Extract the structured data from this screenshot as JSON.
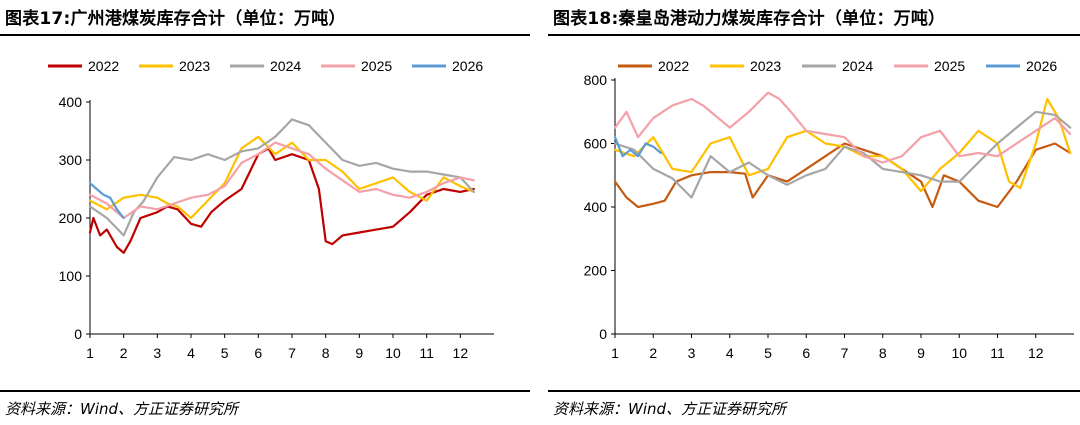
{
  "charts": [
    {
      "title": "图表17:广州港煤炭库存合计（单位：万吨）",
      "source": "资料来源：Wind、方正证券研究所"
    },
    {
      "title": "图表18:秦皇岛港动力煤炭库存合计（单位：万吨）",
      "source": "资料来源：Wind、方正证券研究所"
    }
  ],
  "chart_data": [
    {
      "type": "line",
      "title": "图表17:广州港煤炭库存合计（单位：万吨）",
      "xlabel": "",
      "ylabel": "",
      "xlim": [
        1,
        13
      ],
      "ylim": [
        0,
        400
      ],
      "x_ticks": [
        1,
        2,
        3,
        4,
        5,
        6,
        7,
        8,
        9,
        10,
        11,
        12
      ],
      "y_ticks": [
        0,
        100,
        200,
        300,
        400
      ],
      "grid": false,
      "legend": "top",
      "series": [
        {
          "name": "2022",
          "color": "#c00000",
          "x": [
            1.0,
            1.1,
            1.3,
            1.5,
            1.8,
            2.0,
            2.2,
            2.5,
            3.0,
            3.3,
            3.6,
            4.0,
            4.3,
            4.6,
            5.0,
            5.5,
            6.0,
            6.3,
            6.5,
            7.0,
            7.5,
            7.8,
            8.0,
            8.2,
            8.5,
            9.0,
            9.5,
            10.0,
            10.5,
            11.0,
            11.5,
            12.0,
            12.4
          ],
          "y": [
            175,
            200,
            170,
            180,
            150,
            140,
            160,
            200,
            210,
            220,
            215,
            190,
            185,
            210,
            230,
            250,
            310,
            320,
            300,
            310,
            300,
            250,
            160,
            155,
            170,
            175,
            180,
            185,
            210,
            240,
            250,
            245,
            250
          ]
        },
        {
          "name": "2023",
          "color": "#ffc000",
          "x": [
            1.0,
            1.5,
            2.0,
            2.5,
            3.0,
            3.3,
            3.6,
            4.0,
            4.5,
            5.0,
            5.5,
            6.0,
            6.5,
            7.0,
            7.5,
            8.0,
            8.5,
            9.0,
            9.5,
            10.0,
            10.5,
            11.0,
            11.5,
            12.0,
            12.4
          ],
          "y": [
            230,
            215,
            235,
            240,
            235,
            225,
            220,
            200,
            230,
            260,
            320,
            340,
            310,
            330,
            300,
            300,
            280,
            250,
            260,
            270,
            245,
            230,
            270,
            255,
            245
          ]
        },
        {
          "name": "2024",
          "color": "#a6a6a6",
          "x": [
            1.0,
            1.5,
            2.0,
            2.3,
            2.6,
            3.0,
            3.5,
            4.0,
            4.5,
            5.0,
            5.5,
            6.0,
            6.5,
            7.0,
            7.5,
            8.0,
            8.5,
            9.0,
            9.5,
            10.0,
            10.5,
            11.0,
            11.5,
            12.0,
            12.4
          ],
          "y": [
            220,
            200,
            170,
            210,
            230,
            270,
            305,
            300,
            310,
            300,
            315,
            320,
            340,
            370,
            360,
            330,
            300,
            290,
            295,
            285,
            280,
            280,
            275,
            270,
            245
          ]
        },
        {
          "name": "2025",
          "color": "#f4a0a8",
          "x": [
            1.0,
            1.5,
            2.0,
            2.5,
            3.0,
            3.5,
            4.0,
            4.5,
            5.0,
            5.5,
            6.0,
            6.5,
            7.0,
            7.5,
            8.0,
            8.5,
            9.0,
            9.5,
            10.0,
            10.5,
            11.0,
            11.5,
            12.0,
            12.4
          ],
          "y": [
            240,
            225,
            200,
            220,
            215,
            225,
            235,
            240,
            255,
            295,
            310,
            330,
            320,
            310,
            285,
            265,
            245,
            250,
            240,
            235,
            245,
            260,
            270,
            265
          ]
        },
        {
          "name": "2026",
          "color": "#5b9bd5",
          "x": [
            1.0,
            1.2,
            1.4,
            1.6,
            1.8,
            2.0
          ],
          "y": [
            260,
            250,
            240,
            235,
            215,
            200
          ]
        }
      ]
    },
    {
      "type": "line",
      "title": "图表18:秦皇岛港动力煤炭库存合计（单位：万吨）",
      "xlabel": "",
      "ylabel": "",
      "xlim": [
        1,
        13
      ],
      "ylim": [
        0,
        800
      ],
      "x_ticks": [
        1,
        2,
        3,
        4,
        5,
        6,
        7,
        8,
        9,
        10,
        11,
        12
      ],
      "y_ticks": [
        0,
        200,
        400,
        600,
        800
      ],
      "grid": false,
      "legend": "top",
      "series": [
        {
          "name": "2022",
          "color": "#c55a11",
          "x": [
            1.0,
            1.3,
            1.6,
            2.0,
            2.3,
            2.6,
            3.0,
            3.5,
            4.0,
            4.4,
            4.6,
            5.0,
            5.5,
            6.0,
            6.5,
            7.0,
            7.5,
            8.0,
            8.5,
            9.0,
            9.3,
            9.6,
            10.0,
            10.5,
            11.0,
            11.5,
            12.0,
            12.5,
            12.9
          ],
          "y": [
            480,
            430,
            400,
            410,
            420,
            480,
            500,
            510,
            510,
            505,
            430,
            500,
            480,
            520,
            560,
            600,
            580,
            560,
            520,
            480,
            400,
            500,
            480,
            420,
            400,
            480,
            580,
            600,
            570
          ]
        },
        {
          "name": "2023",
          "color": "#ffc000",
          "x": [
            1.0,
            1.5,
            2.0,
            2.5,
            3.0,
            3.5,
            4.0,
            4.5,
            5.0,
            5.5,
            6.0,
            6.5,
            7.0,
            7.5,
            8.0,
            8.5,
            9.0,
            9.5,
            10.0,
            10.5,
            11.0,
            11.3,
            11.6,
            12.0,
            12.3,
            12.6,
            12.9
          ],
          "y": [
            580,
            560,
            620,
            520,
            510,
            600,
            620,
            500,
            520,
            620,
            640,
            600,
            590,
            560,
            560,
            520,
            450,
            520,
            570,
            640,
            600,
            480,
            460,
            600,
            740,
            680,
            570
          ]
        },
        {
          "name": "2024",
          "color": "#a6a6a6",
          "x": [
            1.0,
            1.5,
            2.0,
            2.5,
            3.0,
            3.5,
            4.0,
            4.5,
            5.0,
            5.5,
            6.0,
            6.5,
            7.0,
            7.5,
            8.0,
            8.5,
            9.0,
            9.5,
            10.0,
            10.5,
            11.0,
            11.5,
            12.0,
            12.5,
            12.9
          ],
          "y": [
            600,
            580,
            520,
            490,
            430,
            560,
            510,
            540,
            500,
            470,
            500,
            520,
            590,
            570,
            520,
            510,
            500,
            480,
            480,
            540,
            600,
            650,
            700,
            690,
            650
          ]
        },
        {
          "name": "2025",
          "color": "#f4a0a8",
          "x": [
            1.0,
            1.3,
            1.6,
            2.0,
            2.5,
            3.0,
            3.3,
            3.6,
            4.0,
            4.5,
            5.0,
            5.3,
            5.6,
            6.0,
            6.5,
            7.0,
            7.5,
            8.0,
            8.5,
            9.0,
            9.5,
            10.0,
            10.5,
            11.0,
            11.5,
            12.0,
            12.5,
            12.9
          ],
          "y": [
            650,
            700,
            620,
            680,
            720,
            740,
            720,
            690,
            650,
            700,
            760,
            740,
            700,
            640,
            630,
            620,
            560,
            540,
            560,
            620,
            640,
            560,
            570,
            560,
            600,
            640,
            680,
            630
          ]
        },
        {
          "name": "2026",
          "color": "#5b9bd5",
          "x": [
            1.0,
            1.2,
            1.4,
            1.6,
            1.8,
            2.0,
            2.2
          ],
          "y": [
            620,
            560,
            580,
            560,
            600,
            590,
            570
          ]
        }
      ]
    }
  ]
}
